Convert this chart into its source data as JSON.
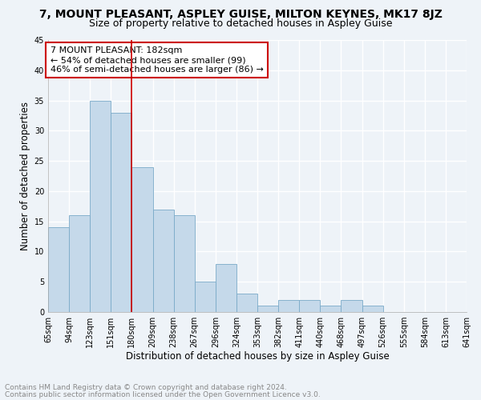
{
  "title": "7, MOUNT PLEASANT, ASPLEY GUISE, MILTON KEYNES, MK17 8JZ",
  "subtitle": "Size of property relative to detached houses in Aspley Guise",
  "xlabel": "Distribution of detached houses by size in Aspley Guise",
  "ylabel": "Number of detached properties",
  "bin_labels": [
    "65sqm",
    "94sqm",
    "123sqm",
    "151sqm",
    "180sqm",
    "209sqm",
    "238sqm",
    "267sqm",
    "296sqm",
    "324sqm",
    "353sqm",
    "382sqm",
    "411sqm",
    "440sqm",
    "468sqm",
    "497sqm",
    "526sqm",
    "555sqm",
    "584sqm",
    "613sqm",
    "641sqm"
  ],
  "bar_values": [
    14,
    16,
    35,
    33,
    24,
    17,
    16,
    5,
    8,
    3,
    1,
    2,
    2,
    1,
    2,
    1,
    0,
    0,
    0,
    0
  ],
  "bar_color": "#c5d9ea",
  "bar_edge_color": "#7aaac8",
  "vline_x": 4,
  "vline_color": "#cc0000",
  "annotation_text": "7 MOUNT PLEASANT: 182sqm\n← 54% of detached houses are smaller (99)\n46% of semi-detached houses are larger (86) →",
  "annotation_box_color": "#ffffff",
  "annotation_box_edge": "#cc0000",
  "ylim": [
    0,
    45
  ],
  "yticks": [
    0,
    5,
    10,
    15,
    20,
    25,
    30,
    35,
    40,
    45
  ],
  "footnote1": "Contains HM Land Registry data © Crown copyright and database right 2024.",
  "footnote2": "Contains public sector information licensed under the Open Government Licence v3.0.",
  "bg_color": "#eef3f8",
  "plot_bg_color": "#eef3f8",
  "grid_color": "#ffffff",
  "title_fontsize": 10,
  "subtitle_fontsize": 9,
  "xlabel_fontsize": 8.5,
  "ylabel_fontsize": 8.5,
  "tick_fontsize": 7,
  "annotation_fontsize": 8,
  "footnote_fontsize": 6.5
}
